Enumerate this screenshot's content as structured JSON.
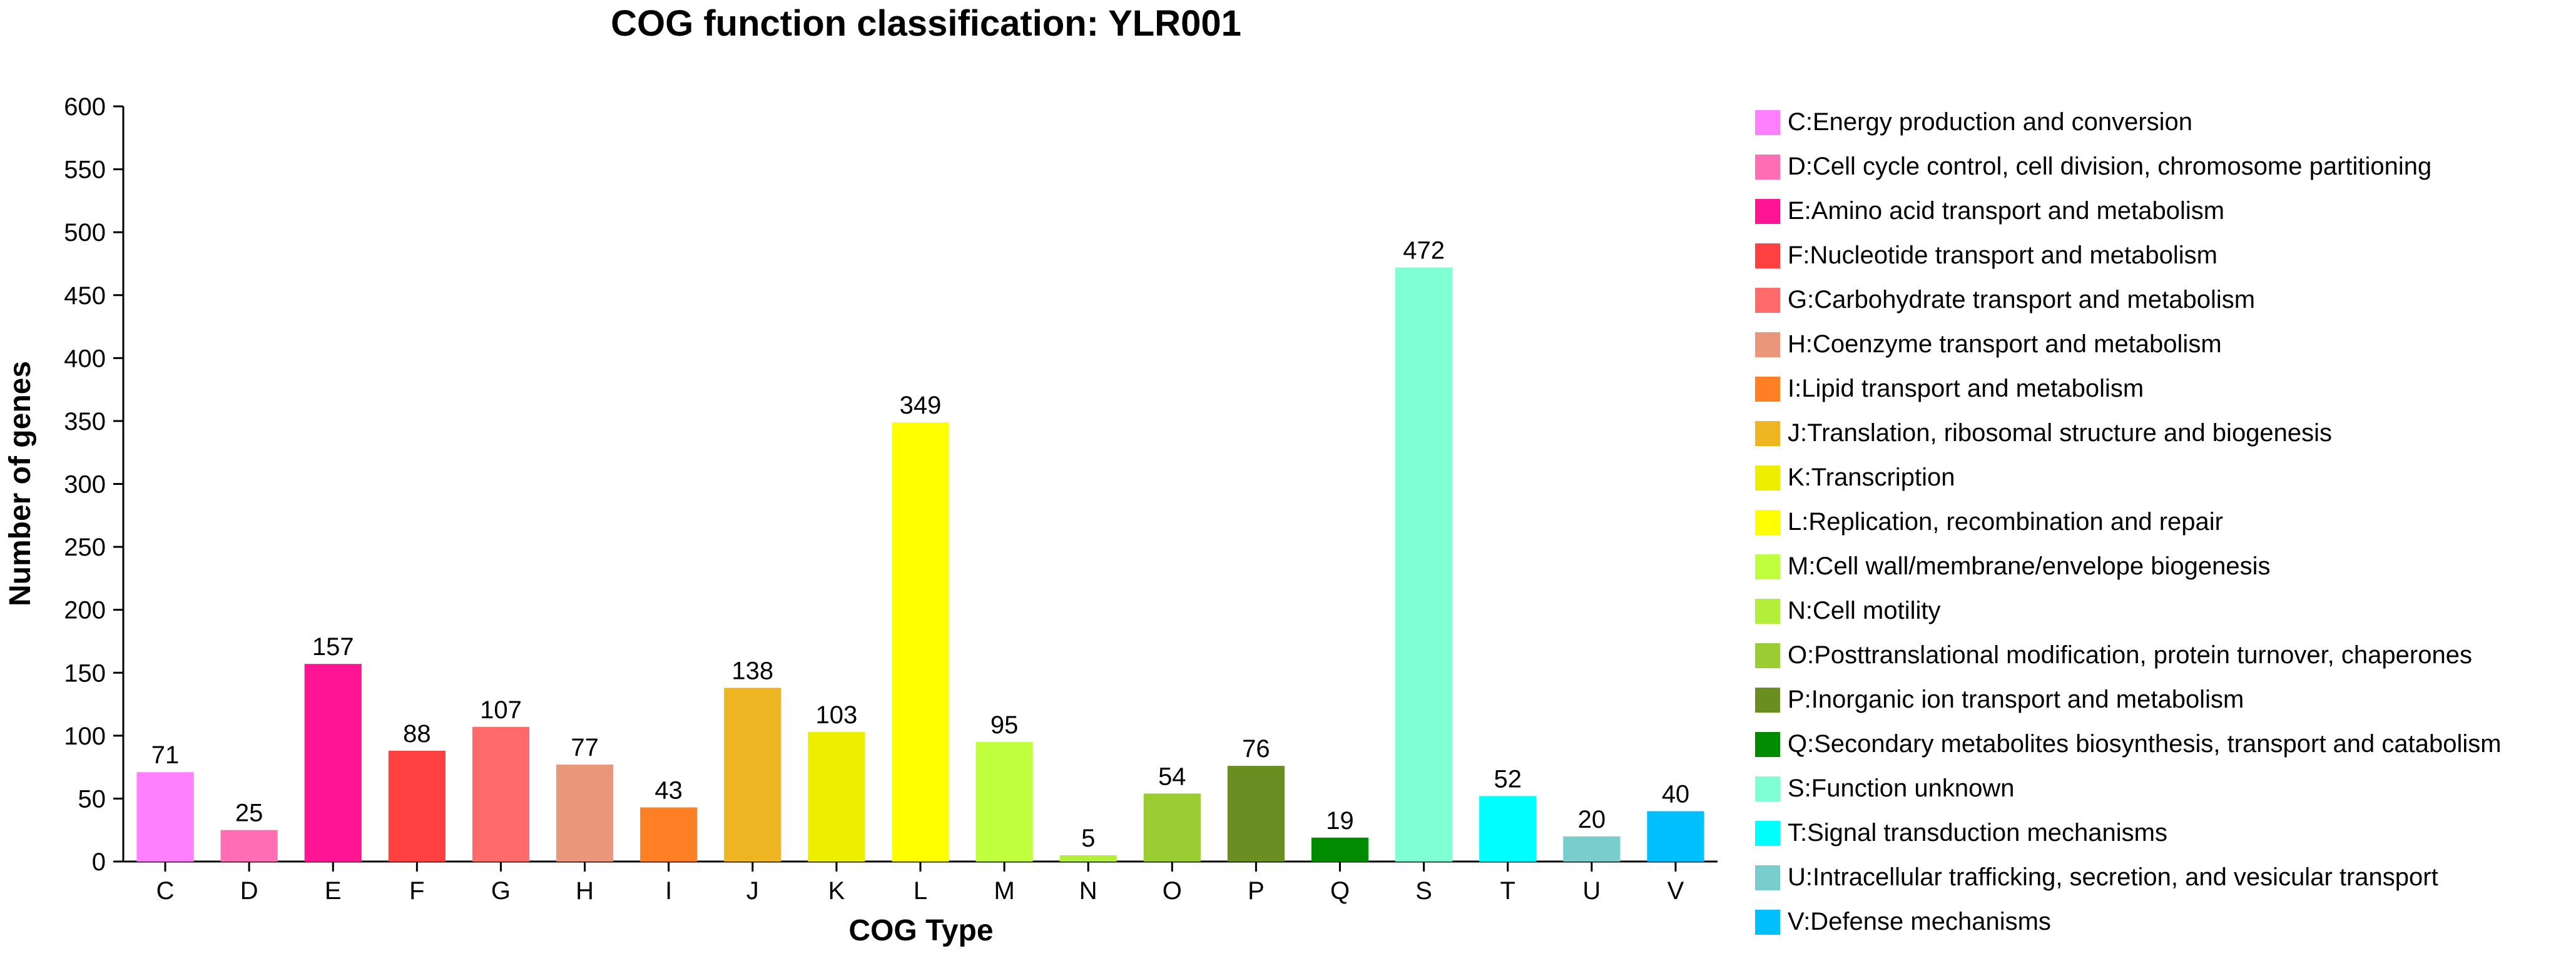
{
  "chart_data": {
    "type": "bar",
    "title": "COG function classification: YLR001",
    "xlabel": "COG Type",
    "ylabel": "Number of genes",
    "ylim": [
      0,
      600
    ],
    "yticks": [
      0,
      50,
      100,
      150,
      200,
      250,
      300,
      350,
      400,
      450,
      500,
      550,
      600
    ],
    "grid": false,
    "legend_position": "right",
    "categories": [
      "C",
      "D",
      "E",
      "F",
      "G",
      "H",
      "I",
      "J",
      "K",
      "L",
      "M",
      "N",
      "O",
      "P",
      "Q",
      "S",
      "T",
      "U",
      "V"
    ],
    "values": [
      71,
      25,
      157,
      88,
      107,
      77,
      43,
      138,
      103,
      349,
      95,
      5,
      54,
      76,
      19,
      472,
      52,
      20,
      40
    ],
    "colors": [
      "#ff80ff",
      "#ff6eb4",
      "#ff1493",
      "#ff4040",
      "#ff6a6a",
      "#e9967a",
      "#ff7f24",
      "#eeb422",
      "#eeee00",
      "#ffff00",
      "#c0ff3e",
      "#b3ee3a",
      "#9acd32",
      "#6b8e23",
      "#008b00",
      "#7fffd4",
      "#00ffff",
      "#79cdcd",
      "#00bfff"
    ],
    "legend": [
      "C:Energy production and conversion",
      "D:Cell cycle control, cell division, chromosome partitioning",
      "E:Amino acid transport and metabolism",
      "F:Nucleotide transport and metabolism",
      "G:Carbohydrate transport and metabolism",
      "H:Coenzyme transport and metabolism",
      "I:Lipid transport and metabolism",
      "J:Translation, ribosomal structure and biogenesis",
      "K:Transcription",
      "L:Replication, recombination and repair",
      "M:Cell wall/membrane/envelope biogenesis",
      "N:Cell motility",
      "O:Posttranslational modification, protein turnover, chaperones",
      "P:Inorganic ion transport and metabolism",
      "Q:Secondary metabolites biosynthesis, transport and catabolism",
      "S:Function unknown",
      "T:Signal transduction mechanisms",
      "U:Intracellular trafficking, secretion, and vesicular transport",
      "V:Defense mechanisms"
    ]
  }
}
